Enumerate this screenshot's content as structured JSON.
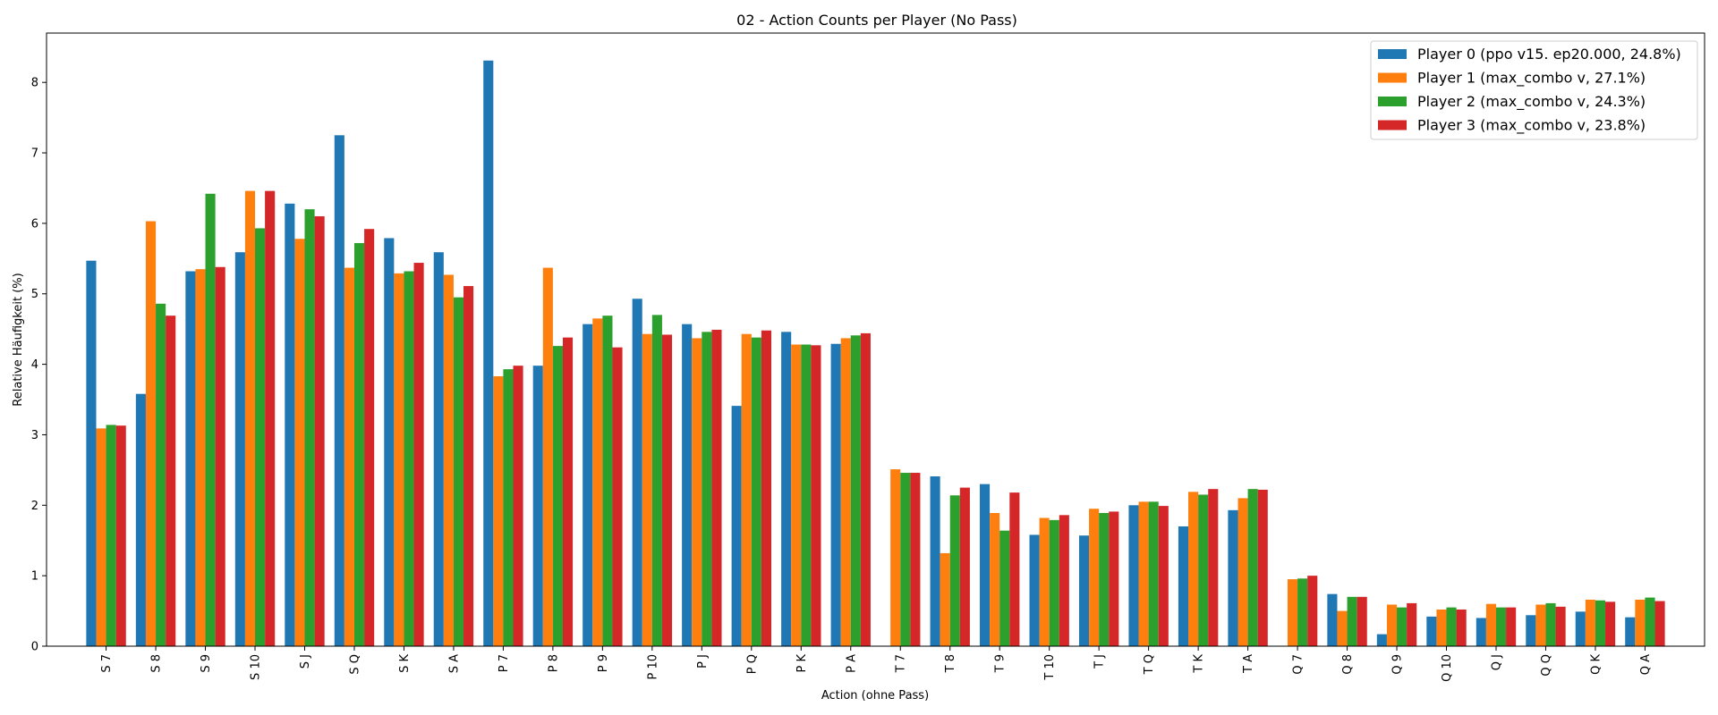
{
  "chart_data": {
    "type": "bar",
    "title": "02 - Action Counts per Player (No Pass)",
    "xlabel": "Action (ohne Pass)",
    "ylabel": "Relative Häufigkeit (%)",
    "ylim": [
      0,
      8.7
    ],
    "yticks": [
      0,
      1,
      2,
      3,
      4,
      5,
      6,
      7,
      8
    ],
    "ytick_labels": [
      "0",
      "1",
      "2",
      "3",
      "4",
      "5",
      "6",
      "7",
      "8"
    ],
    "grid": false,
    "legend_position": "top-right",
    "categories": [
      "S 7",
      "S 8",
      "S 9",
      "S 10",
      "S J",
      "S Q",
      "S K",
      "S A",
      "P 7",
      "P 8",
      "P 9",
      "P 10",
      "P J",
      "P Q",
      "P K",
      "P A",
      "T 7",
      "T 8",
      "T 9",
      "T 10",
      "T J",
      "T Q",
      "T K",
      "T A",
      "Q 7",
      "Q 8",
      "Q 9",
      "Q 10",
      "Q J",
      "Q Q",
      "Q K",
      "Q A"
    ],
    "series": [
      {
        "name": "Player 0 (ppo v15. ep20.000, 24.8%)",
        "color": "#1f77b4",
        "values": [
          5.47,
          3.58,
          5.32,
          5.59,
          6.28,
          7.25,
          5.79,
          5.59,
          8.31,
          3.98,
          4.57,
          4.93,
          4.57,
          3.41,
          4.46,
          4.29,
          0,
          2.41,
          2.3,
          1.58,
          1.57,
          2.0,
          1.7,
          1.93,
          0,
          0.74,
          0.17,
          0.42,
          0.4,
          0.44,
          0.49,
          0.41
        ]
      },
      {
        "name": "Player 1 (max_combo v, 27.1%)",
        "color": "#ff7f0e",
        "values": [
          3.09,
          6.03,
          5.35,
          6.46,
          5.78,
          5.37,
          5.29,
          5.27,
          3.83,
          5.37,
          4.65,
          4.43,
          4.37,
          4.43,
          4.28,
          4.37,
          2.51,
          1.32,
          1.89,
          1.82,
          1.95,
          2.05,
          2.19,
          2.1,
          0.95,
          0.5,
          0.59,
          0.52,
          0.6,
          0.59,
          0.66,
          0.66
        ]
      },
      {
        "name": "Player 2 (max_combo v, 24.3%)",
        "color": "#2ca02c",
        "values": [
          3.14,
          4.86,
          6.42,
          5.93,
          6.2,
          5.72,
          5.32,
          4.95,
          3.93,
          4.26,
          4.69,
          4.7,
          4.46,
          4.38,
          4.28,
          4.41,
          2.46,
          2.14,
          1.64,
          1.79,
          1.89,
          2.05,
          2.15,
          2.23,
          0.96,
          0.7,
          0.55,
          0.55,
          0.55,
          0.61,
          0.65,
          0.69
        ]
      },
      {
        "name": "Player 3 (max_combo v, 23.8%)",
        "color": "#d62728",
        "values": [
          3.13,
          4.69,
          5.38,
          6.46,
          6.1,
          5.92,
          5.44,
          5.11,
          3.98,
          4.38,
          4.24,
          4.42,
          4.49,
          4.48,
          4.27,
          4.44,
          2.46,
          2.25,
          2.18,
          1.86,
          1.91,
          1.99,
          2.23,
          2.22,
          1.0,
          0.7,
          0.61,
          0.52,
          0.55,
          0.56,
          0.63,
          0.64
        ]
      }
    ]
  }
}
